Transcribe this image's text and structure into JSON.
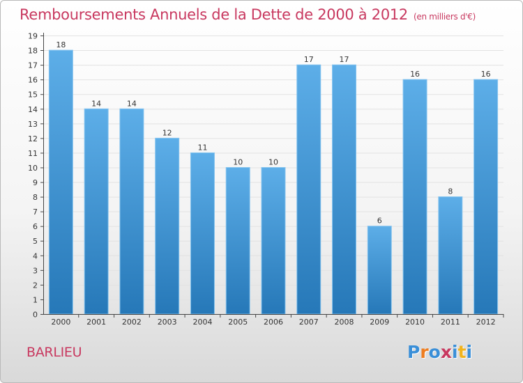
{
  "header": {
    "title": "Remboursements Annuels de la Dette de 2000 à 2012",
    "unit": "(en milliers d'€)"
  },
  "footer": {
    "place": "BARLIEU",
    "logo": "Proxiti"
  },
  "colors": {
    "accent": "#c8385f",
    "bar_top": "#5daee8",
    "bar_bottom": "#2678b8",
    "logo_letters": [
      "#3a8fd8",
      "#ee7d1f",
      "#3a8fd8",
      "#c8385f",
      "#3a8fd8",
      "#f2b41d",
      "#3a8fd8"
    ]
  },
  "chart_data": {
    "type": "bar",
    "categories": [
      "2000",
      "2001",
      "2002",
      "2003",
      "2004",
      "2005",
      "2006",
      "2007",
      "2008",
      "2009",
      "2010",
      "2011",
      "2012"
    ],
    "values": [
      18,
      14,
      14,
      12,
      11,
      10,
      10,
      17,
      17,
      6,
      16,
      8,
      16
    ],
    "title": "Remboursements Annuels de la Dette de 2000 à 2012",
    "xlabel": "",
    "ylabel": "",
    "ylim": [
      0,
      19
    ],
    "yticks": [
      "0",
      "1",
      "2",
      "3",
      "4",
      "5",
      "6",
      "7",
      "8",
      "9",
      "10",
      "11",
      "12",
      "13",
      "14",
      "15",
      "16",
      "17",
      "18",
      "19"
    ],
    "grid": true,
    "data_labels": true
  }
}
